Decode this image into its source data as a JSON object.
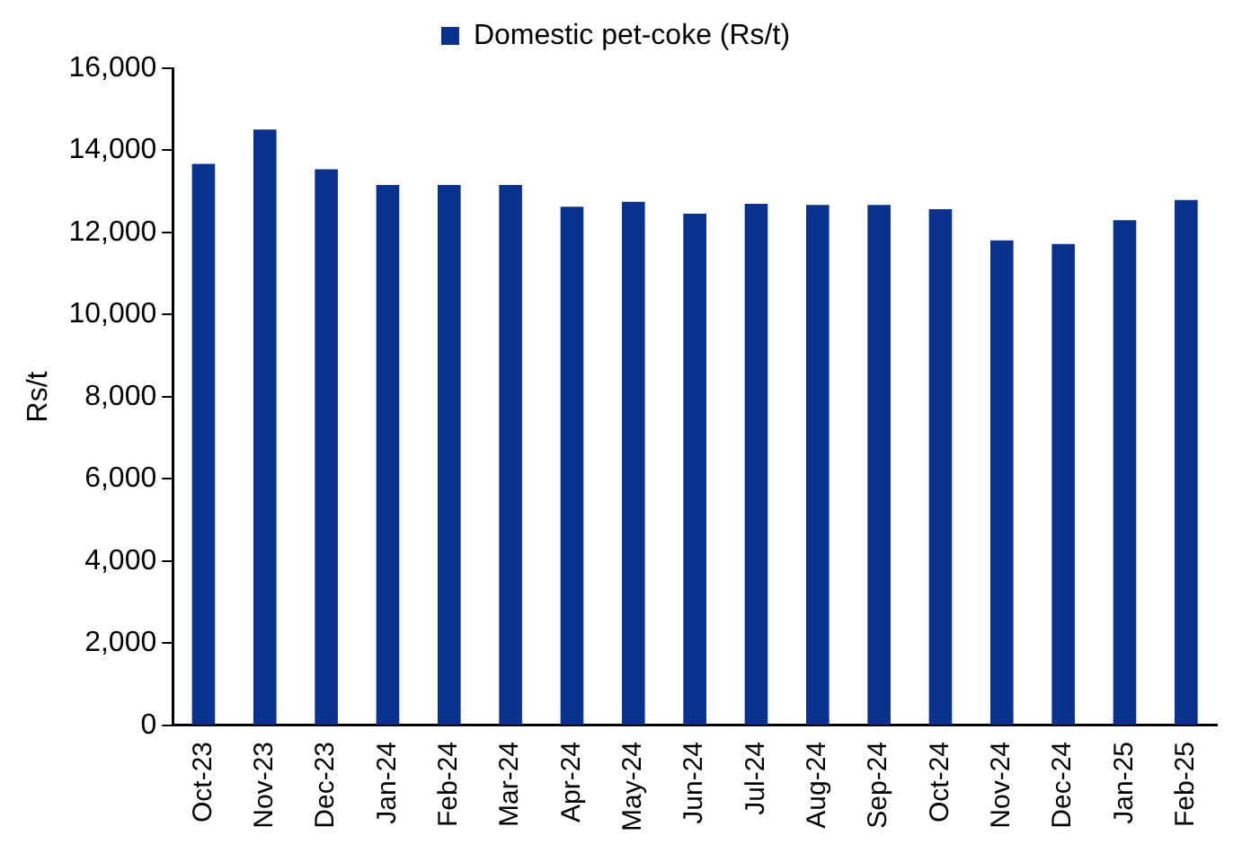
{
  "chart_data": {
    "type": "bar",
    "ylabel": "Rs/t",
    "categories": [
      "Oct-23",
      "Nov-23",
      "Dec-23",
      "Jan-24",
      "Feb-24",
      "Mar-24",
      "Apr-24",
      "May-24",
      "Jun-24",
      "Jul-24",
      "Aug-24",
      "Sep-24",
      "Oct-24",
      "Nov-24",
      "Dec-24",
      "Jan-25",
      "Feb-25"
    ],
    "series": [
      {
        "name": "Domestic pet-coke (Rs/t)",
        "color": "#0b318f",
        "values": [
          13670,
          14510,
          13540,
          13160,
          13160,
          13160,
          12630,
          12750,
          12460,
          12700,
          12670,
          12670,
          12570,
          11810,
          11720,
          12300,
          12790
        ]
      }
    ],
    "ylim": [
      0,
      16000
    ],
    "yticks": [
      {
        "value": 0,
        "label": "0"
      },
      {
        "value": 2000,
        "label": "2,000"
      },
      {
        "value": 4000,
        "label": "4,000"
      },
      {
        "value": 6000,
        "label": "6,000"
      },
      {
        "value": 8000,
        "label": "8,000"
      },
      {
        "value": 10000,
        "label": "10,000"
      },
      {
        "value": 12000,
        "label": "12,000"
      },
      {
        "value": 14000,
        "label": "14,000"
      },
      {
        "value": 16000,
        "label": "16,000"
      }
    ],
    "grid": false,
    "legend": "top"
  }
}
